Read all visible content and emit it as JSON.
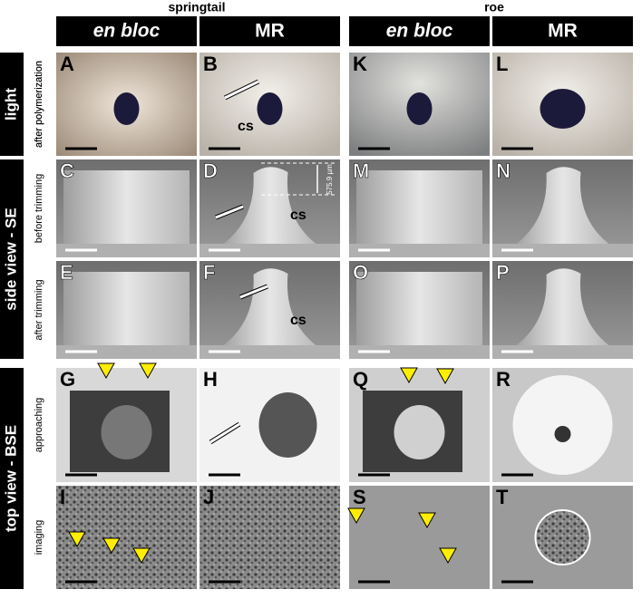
{
  "header": {
    "groups": [
      "springtail",
      "roe"
    ],
    "columns": [
      "en bloc",
      "MR",
      "en bloc",
      "MR"
    ]
  },
  "rows": [
    {
      "label": "light",
      "sublabels": [
        "after polymerization"
      ]
    },
    {
      "label": "side view - SE",
      "sublabels": [
        "before trimming",
        "after trimming"
      ]
    },
    {
      "label": "top view - BSE",
      "sublabels": [
        "approaching",
        "imaging"
      ]
    }
  ],
  "panels": [
    [
      "A",
      "B",
      "K",
      "L"
    ],
    [
      "C",
      "D",
      "M",
      "N"
    ],
    [
      "E",
      "F",
      "O",
      "P"
    ],
    [
      "G",
      "H",
      "Q",
      "R"
    ],
    [
      "I",
      "J",
      "S",
      "T"
    ]
  ],
  "annotations": [
    {
      "text": "cs"
    },
    {
      "text": "cs"
    },
    {
      "text": "cs"
    },
    {
      "text": "575.9 µm"
    }
  ]
}
